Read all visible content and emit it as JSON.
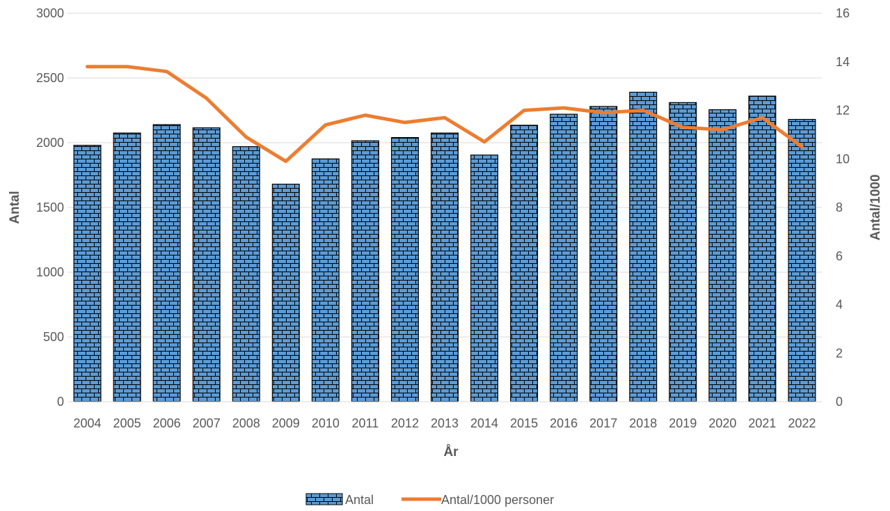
{
  "chart_data": {
    "type": "bar",
    "categories": [
      "2004",
      "2005",
      "2006",
      "2007",
      "2008",
      "2009",
      "2010",
      "2011",
      "2012",
      "2013",
      "2014",
      "2015",
      "2016",
      "2017",
      "2018",
      "2019",
      "2020",
      "2021",
      "2022"
    ],
    "series": [
      {
        "name": "Antal",
        "type": "bar",
        "axis": "left",
        "color": "#5B9BD5",
        "pattern": "brick",
        "values": [
          1980,
          2075,
          2140,
          2115,
          1970,
          1680,
          1875,
          2015,
          2040,
          2075,
          1905,
          2135,
          2220,
          2280,
          2390,
          2310,
          2255,
          2360,
          2180
        ]
      },
      {
        "name": "Antal/1000 personer",
        "type": "line",
        "axis": "right",
        "color": "#ED7D31",
        "values": [
          13.8,
          13.8,
          13.6,
          12.5,
          10.9,
          9.9,
          11.4,
          11.8,
          11.5,
          11.7,
          10.7,
          12.0,
          12.1,
          11.9,
          12.0,
          11.3,
          11.2,
          11.7,
          10.5
        ]
      }
    ],
    "xlabel": "År",
    "ylabel": "Antal",
    "y2label": "Antal/1000",
    "ylim": [
      0,
      3000
    ],
    "yticks": [
      0,
      500,
      1000,
      1500,
      2000,
      2500,
      3000
    ],
    "y2lim": [
      0,
      16
    ],
    "y2ticks": [
      0,
      2,
      4,
      6,
      8,
      10,
      12,
      14,
      16
    ],
    "grid": true,
    "legend_position": "bottom"
  }
}
